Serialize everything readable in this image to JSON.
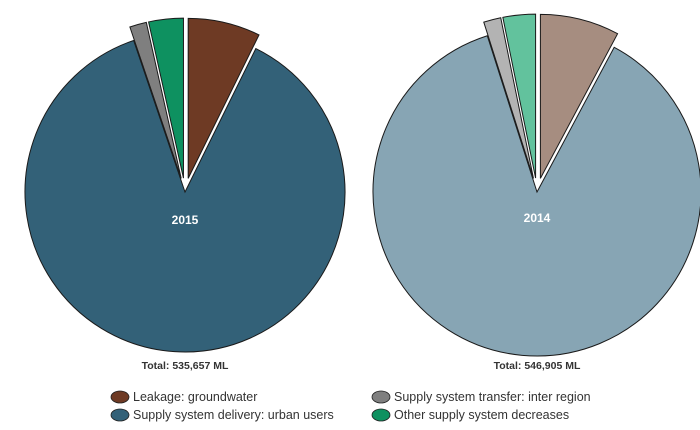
{
  "chart_data": {
    "type": "pie",
    "categories": [
      "Leakage: groundwater",
      "Supply system delivery: urban users",
      "Supply system transfer: inter region",
      "Other supply system decreases"
    ],
    "legend": {
      "placement": "bottom",
      "items": [
        {
          "label": "Leakage: groundwater",
          "color": "#6e3a24"
        },
        {
          "label": "Supply system transfer: inter region",
          "color": "#7f7f7f"
        },
        {
          "label": "Supply system delivery: urban users",
          "color": "#336178"
        },
        {
          "label": "Other supply system decreases",
          "color": "#0e9160"
        }
      ]
    },
    "pies": [
      {
        "label": "2015",
        "total_text": "Total: 535,657 ML",
        "total": 535657,
        "values": [
          7.3,
          87.5,
          1.7,
          3.5
        ],
        "colors": [
          "#6e3a24",
          "#336178",
          "#7f7f7f",
          "#0e9160"
        ]
      },
      {
        "label": "2014",
        "total_text": "Total: 546,905 ML",
        "total": 546905,
        "values": [
          7.8,
          87.3,
          1.7,
          3.2
        ],
        "colors": [
          "#a68d80",
          "#87a5b4",
          "#b3b3b3",
          "#62c29d"
        ]
      }
    ]
  }
}
